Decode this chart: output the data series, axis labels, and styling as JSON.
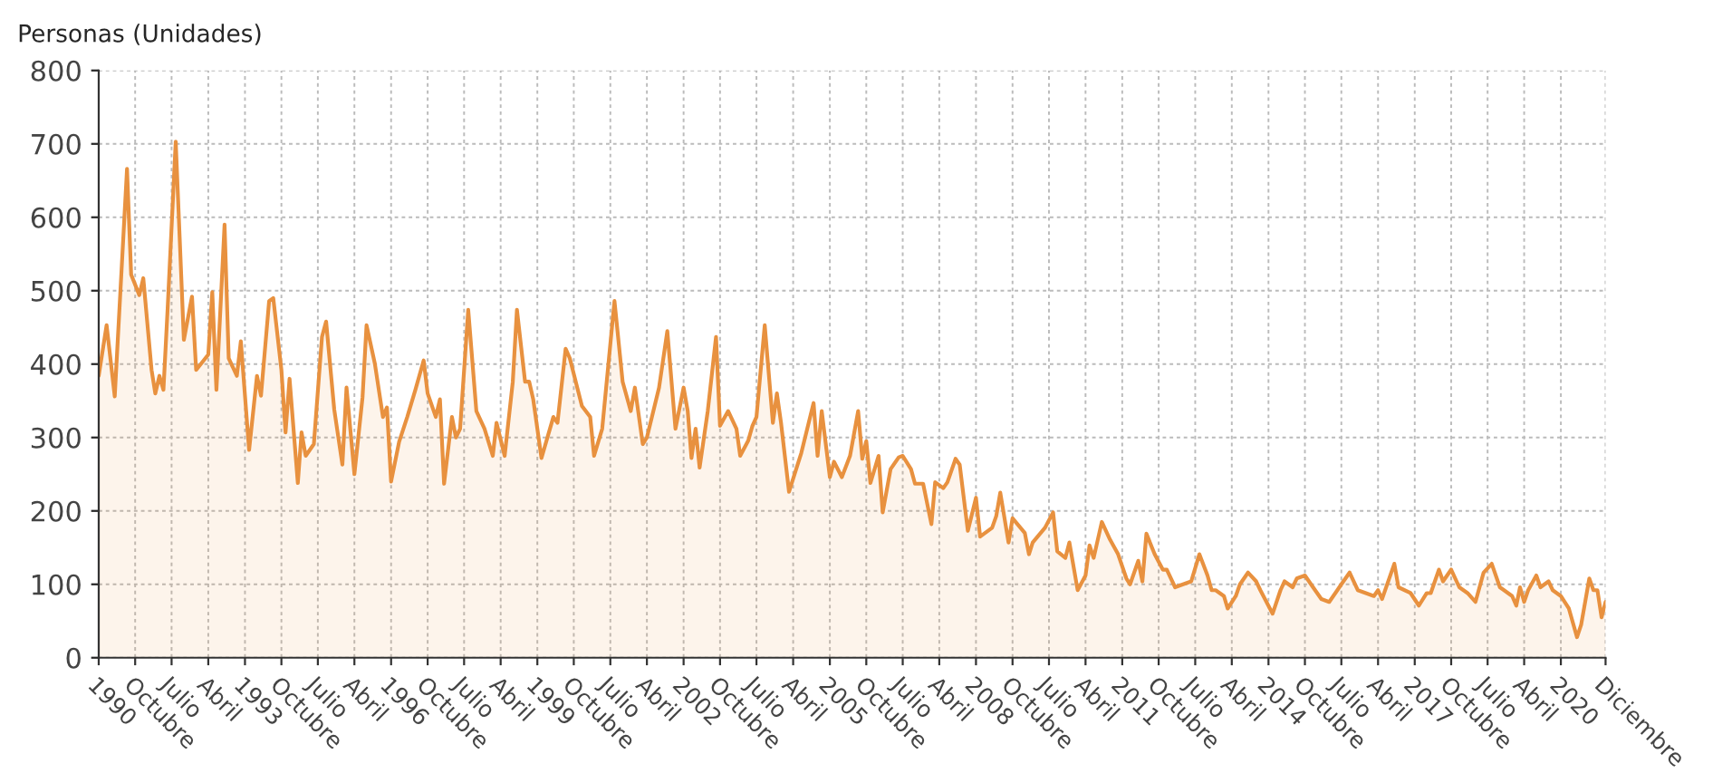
{
  "chart_data": {
    "type": "area",
    "ylabel": "Personas (Unidades)",
    "x": [
      "1990-01",
      "1990-03",
      "1990-05",
      "1990-08",
      "1990-09",
      "1990-11",
      "1990-12",
      "1991-02",
      "1991-03",
      "1991-04",
      "1991-05",
      "1991-06",
      "1991-08",
      "1991-10",
      "1991-12",
      "1992-01",
      "1992-04",
      "1992-05",
      "1992-06",
      "1992-08",
      "1992-09",
      "1992-11",
      "1992-12",
      "1993-02",
      "1993-04",
      "1993-05",
      "1993-07",
      "1993-08",
      "1993-10",
      "1993-11",
      "1993-12",
      "1994-02",
      "1994-03",
      "1994-04",
      "1994-06",
      "1994-08",
      "1994-09",
      "1994-11",
      "1995-01",
      "1995-02",
      "1995-04",
      "1995-06",
      "1995-07",
      "1995-09",
      "1995-11",
      "1995-12",
      "1996-01",
      "1996-03",
      "1996-05",
      "1996-07",
      "1996-09",
      "1996-10",
      "1996-12",
      "1997-01",
      "1997-02",
      "1997-04",
      "1997-05",
      "1997-06",
      "1997-08",
      "1997-10",
      "1997-12",
      "1998-02",
      "1998-03",
      "1998-05",
      "1998-07",
      "1998-08",
      "1998-10",
      "1998-11",
      "1998-12",
      "1999-02",
      "1999-05",
      "1999-06",
      "1999-08",
      "1999-09",
      "1999-12",
      "2000-02",
      "2000-03",
      "2000-05",
      "2000-08",
      "2000-10",
      "2000-12",
      "2001-01",
      "2001-03",
      "2001-04",
      "2001-07",
      "2001-09",
      "2001-11",
      "2002-01",
      "2002-02",
      "2002-03",
      "2002-04",
      "2002-05",
      "2002-07",
      "2002-09",
      "2002-10",
      "2002-12",
      "2003-02",
      "2003-03",
      "2003-05",
      "2003-06",
      "2003-07",
      "2003-09",
      "2003-11",
      "2003-12",
      "2004-01",
      "2004-03",
      "2004-06",
      "2004-09",
      "2004-10",
      "2004-11",
      "2005-01",
      "2005-02",
      "2005-04",
      "2005-06",
      "2005-08",
      "2005-09",
      "2005-10",
      "2005-11",
      "2006-01",
      "2006-02",
      "2006-04",
      "2006-06",
      "2006-07",
      "2006-09",
      "2006-10",
      "2006-12",
      "2007-02",
      "2007-03",
      "2007-05",
      "2007-06",
      "2007-08",
      "2007-09",
      "2007-11",
      "2008-01",
      "2008-02",
      "2008-05",
      "2008-06",
      "2008-07",
      "2008-09",
      "2008-10",
      "2009-01",
      "2009-02",
      "2009-03",
      "2009-06",
      "2009-08",
      "2009-09",
      "2009-11",
      "2009-12",
      "2010-02",
      "2010-04",
      "2010-05",
      "2010-06",
      "2010-08",
      "2010-10",
      "2010-12",
      "2011-02",
      "2011-03",
      "2011-05",
      "2011-06",
      "2011-07",
      "2011-09",
      "2011-11",
      "2011-12",
      "2012-02",
      "2012-04",
      "2012-06",
      "2012-08",
      "2012-10",
      "2012-11",
      "2012-12",
      "2013-02",
      "2013-03",
      "2013-05",
      "2013-06",
      "2013-08",
      "2013-10",
      "2013-11",
      "2014-02",
      "2014-04",
      "2014-05",
      "2014-07",
      "2014-08",
      "2014-10",
      "2014-12",
      "2015-02",
      "2015-04",
      "2015-06",
      "2015-07",
      "2015-09",
      "2015-11",
      "2016-01",
      "2016-03",
      "2016-04",
      "2016-05",
      "2016-08",
      "2016-09",
      "2016-12",
      "2017-02",
      "2017-04",
      "2017-05",
      "2017-07",
      "2017-08",
      "2017-10",
      "2017-12",
      "2018-02",
      "2018-04",
      "2018-06",
      "2018-08",
      "2018-10",
      "2018-11",
      "2019-01",
      "2019-02",
      "2019-03",
      "2019-04",
      "2019-05",
      "2019-07",
      "2019-08",
      "2019-10",
      "2019-11",
      "2020-01",
      "2020-03",
      "2020-05",
      "2020-06",
      "2020-08",
      "2020-09",
      "2020-10",
      "2020-11",
      "2020-12"
    ],
    "series": [
      {
        "color": "#e8913f",
        "values": [
          384,
          453,
          356,
          666,
          522,
          494,
          517,
          392,
          360,
          384,
          365,
          474,
          703,
          433,
          492,
          392,
          413,
          498,
          365,
          590,
          408,
          384,
          431,
          283,
          384,
          357,
          486,
          490,
          392,
          307,
          380,
          238,
          307,
          275,
          291,
          437,
          458,
          338,
          263,
          368,
          250,
          355,
          453,
          401,
          328,
          341,
          240,
          294,
          328,
          365,
          405,
          360,
          328,
          352,
          237,
          328,
          300,
          312,
          474,
          336,
          312,
          275,
          320,
          275,
          376,
          474,
          376,
          376,
          352,
          272,
          328,
          320,
          421,
          408,
          343,
          328,
          275,
          312,
          486,
          376,
          336,
          368,
          291,
          300,
          368,
          445,
          312,
          368,
          336,
          272,
          312,
          259,
          336,
          437,
          316,
          336,
          312,
          275,
          296,
          316,
          328,
          453,
          320,
          360,
          320,
          226,
          279,
          347,
          275,
          336,
          246,
          267,
          246,
          275,
          336,
          271,
          295,
          238,
          275,
          198,
          257,
          273,
          275,
          257,
          237,
          237,
          182,
          239,
          231,
          239,
          271,
          263,
          173,
          218,
          165,
          177,
          193,
          225,
          157,
          190,
          170,
          141,
          157,
          177,
          198,
          145,
          136,
          157,
          92,
          112,
          153,
          136,
          185,
          161,
          141,
          108,
          100,
          132,
          104,
          169,
          141,
          120,
          120,
          96,
          100,
          104,
          141,
          112,
          92,
          92,
          84,
          67,
          84,
          100,
          116,
          104,
          92,
          60,
          92,
          104,
          96,
          108,
          112,
          96,
          80,
          76,
          92,
          100,
          116,
          92,
          88,
          84,
          92,
          80,
          128,
          96,
          88,
          71,
          88,
          88,
          120,
          104,
          120,
          96,
          88,
          76,
          116,
          128,
          96,
          92,
          84,
          71,
          96,
          76,
          92,
          112,
          96,
          104,
          92,
          84,
          67,
          28,
          45,
          108,
          92,
          92,
          55,
          76
        ]
      }
    ],
    "xlim": [
      "1990-01",
      "2020-12"
    ],
    "xticks": [
      {
        "value": "1990-01",
        "label": "1990"
      },
      {
        "value": "1990-10",
        "label": "Octubre"
      },
      {
        "value": "1991-07",
        "label": "Julio"
      },
      {
        "value": "1992-04",
        "label": "Abril"
      },
      {
        "value": "1993-01",
        "label": "1993"
      },
      {
        "value": "1993-10",
        "label": "Octubre"
      },
      {
        "value": "1994-07",
        "label": "Julio"
      },
      {
        "value": "1995-04",
        "label": "Abril"
      },
      {
        "value": "1996-01",
        "label": "1996"
      },
      {
        "value": "1996-10",
        "label": "Octubre"
      },
      {
        "value": "1997-07",
        "label": "Julio"
      },
      {
        "value": "1998-04",
        "label": "Abril"
      },
      {
        "value": "1999-01",
        "label": "1999"
      },
      {
        "value": "1999-10",
        "label": "Octubre"
      },
      {
        "value": "2000-07",
        "label": "Julio"
      },
      {
        "value": "2001-04",
        "label": "Abril"
      },
      {
        "value": "2002-01",
        "label": "2002"
      },
      {
        "value": "2002-10",
        "label": "Octubre"
      },
      {
        "value": "2003-07",
        "label": "Julio"
      },
      {
        "value": "2004-04",
        "label": "Abril"
      },
      {
        "value": "2005-01",
        "label": "2005"
      },
      {
        "value": "2005-10",
        "label": "Octubre"
      },
      {
        "value": "2006-07",
        "label": "Julio"
      },
      {
        "value": "2007-04",
        "label": "Abril"
      },
      {
        "value": "2008-01",
        "label": "2008"
      },
      {
        "value": "2008-10",
        "label": "Octubre"
      },
      {
        "value": "2009-07",
        "label": "Julio"
      },
      {
        "value": "2010-04",
        "label": "Abril"
      },
      {
        "value": "2011-01",
        "label": "2011"
      },
      {
        "value": "2011-10",
        "label": "Octubre"
      },
      {
        "value": "2012-07",
        "label": "Julio"
      },
      {
        "value": "2013-04",
        "label": "Abril"
      },
      {
        "value": "2014-01",
        "label": "2014"
      },
      {
        "value": "2014-10",
        "label": "Octubre"
      },
      {
        "value": "2015-07",
        "label": "Julio"
      },
      {
        "value": "2016-04",
        "label": "Abril"
      },
      {
        "value": "2017-01",
        "label": "2017"
      },
      {
        "value": "2017-10",
        "label": "Octubre"
      },
      {
        "value": "2018-07",
        "label": "Julio"
      },
      {
        "value": "2019-04",
        "label": "Abril"
      },
      {
        "value": "2020-01",
        "label": "2020"
      },
      {
        "value": "2020-12",
        "label": "Diciembre"
      }
    ],
    "ylim": [
      0,
      800
    ],
    "yticks": [
      0,
      100,
      200,
      300,
      400,
      500,
      600,
      700,
      800
    ],
    "grid": true,
    "line_style": "solid",
    "marker": "none"
  }
}
